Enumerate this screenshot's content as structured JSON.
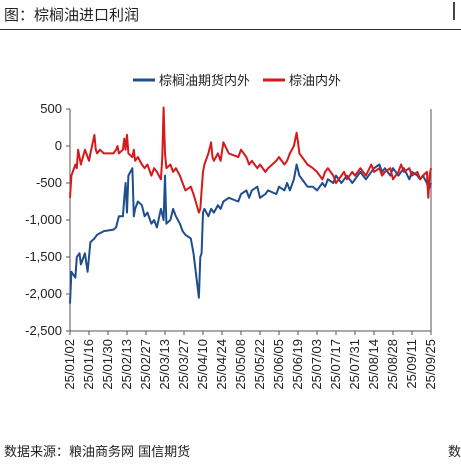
{
  "header": {
    "title": "图：棕榈油进口利润"
  },
  "footer": {
    "source": "数据来源：粮油商务网 国信期货",
    "edge_mark": "数"
  },
  "chart_data": {
    "type": "line",
    "legend_position": "top",
    "grid": false,
    "ylim": [
      -2500,
      500
    ],
    "yticks": [
      500,
      0,
      -500,
      -1000,
      -1500,
      -2000,
      -2500
    ],
    "ytick_labels": [
      "500",
      "0",
      "-500",
      "-1,000",
      "-1,500",
      "-2,000",
      "-2,500"
    ],
    "xlim": [
      "2025-01-02",
      "2025-09-25"
    ],
    "xtick_labels": [
      "25/01/02",
      "25/01/16",
      "25/01/30",
      "25/02/13",
      "25/02/27",
      "25/03/13",
      "25/03/27",
      "25/04/10",
      "25/04/24",
      "25/05/08",
      "25/05/22",
      "25/06/05",
      "25/06/19",
      "25/07/03",
      "25/07/17",
      "25/07/31",
      "25/08/14",
      "25/08/28",
      "25/09/11",
      "25/09/25"
    ],
    "xtick_dates": [
      "2025-01-02",
      "2025-01-16",
      "2025-01-30",
      "2025-02-13",
      "2025-02-27",
      "2025-03-13",
      "2025-03-27",
      "2025-04-10",
      "2025-04-24",
      "2025-05-08",
      "2025-05-22",
      "2025-06-05",
      "2025-06-19",
      "2025-07-03",
      "2025-07-17",
      "2025-07-31",
      "2025-08-14",
      "2025-08-28",
      "2025-09-11",
      "2025-09-25"
    ],
    "series": [
      {
        "name": "棕榈油期货内外",
        "color": "#1f4e8c",
        "points": [
          [
            "2025-01-02",
            -2130
          ],
          [
            "2025-01-03",
            -1700
          ],
          [
            "2025-01-06",
            -1780
          ],
          [
            "2025-01-07",
            -1500
          ],
          [
            "2025-01-09",
            -1450
          ],
          [
            "2025-01-10",
            -1600
          ],
          [
            "2025-01-13",
            -1450
          ],
          [
            "2025-01-15",
            -1700
          ],
          [
            "2025-01-17",
            -1300
          ],
          [
            "2025-01-20",
            -1250
          ],
          [
            "2025-01-22",
            -1200
          ],
          [
            "2025-01-24",
            -1180
          ],
          [
            "2025-01-27",
            -1150
          ],
          [
            "2025-02-03",
            -1130
          ],
          [
            "2025-02-05",
            -1100
          ],
          [
            "2025-02-07",
            -950
          ],
          [
            "2025-02-10",
            -950
          ],
          [
            "2025-02-11",
            -700
          ],
          [
            "2025-02-12",
            -500
          ],
          [
            "2025-02-13",
            -900
          ],
          [
            "2025-02-14",
            -400
          ],
          [
            "2025-02-17",
            -300
          ],
          [
            "2025-02-18",
            -950
          ],
          [
            "2025-02-19",
            -850
          ],
          [
            "2025-02-21",
            -750
          ],
          [
            "2025-02-24",
            -800
          ],
          [
            "2025-02-26",
            -950
          ],
          [
            "2025-02-28",
            -900
          ],
          [
            "2025-03-03",
            -1050
          ],
          [
            "2025-03-05",
            -1000
          ],
          [
            "2025-03-07",
            -1100
          ],
          [
            "2025-03-10",
            -850
          ],
          [
            "2025-03-12",
            -1000
          ],
          [
            "2025-03-13",
            -400
          ],
          [
            "2025-03-14",
            -1050
          ],
          [
            "2025-03-17",
            -1000
          ],
          [
            "2025-03-19",
            -850
          ],
          [
            "2025-03-21",
            -950
          ],
          [
            "2025-03-24",
            -1050
          ],
          [
            "2025-03-26",
            -1150
          ],
          [
            "2025-03-28",
            -1200
          ],
          [
            "2025-04-01",
            -1250
          ],
          [
            "2025-04-03",
            -1450
          ],
          [
            "2025-04-07",
            -2050
          ],
          [
            "2025-04-08",
            -1500
          ],
          [
            "2025-04-09",
            -1450
          ],
          [
            "2025-04-10",
            -900
          ],
          [
            "2025-04-11",
            -850
          ],
          [
            "2025-04-14",
            -950
          ],
          [
            "2025-04-16",
            -850
          ],
          [
            "2025-04-18",
            -900
          ],
          [
            "2025-04-21",
            -800
          ],
          [
            "2025-04-23",
            -850
          ],
          [
            "2025-04-25",
            -750
          ],
          [
            "2025-04-29",
            -700
          ],
          [
            "2025-05-06",
            -750
          ],
          [
            "2025-05-08",
            -650
          ],
          [
            "2025-05-12",
            -600
          ],
          [
            "2025-05-14",
            -700
          ],
          [
            "2025-05-16",
            -600
          ],
          [
            "2025-05-20",
            -550
          ],
          [
            "2025-05-22",
            -700
          ],
          [
            "2025-05-26",
            -650
          ],
          [
            "2025-05-28",
            -600
          ],
          [
            "2025-06-03",
            -650
          ],
          [
            "2025-06-05",
            -550
          ],
          [
            "2025-06-09",
            -600
          ],
          [
            "2025-06-11",
            -500
          ],
          [
            "2025-06-13",
            -600
          ],
          [
            "2025-06-16",
            -450
          ],
          [
            "2025-06-18",
            -250
          ],
          [
            "2025-06-20",
            -400
          ],
          [
            "2025-06-24",
            -500
          ],
          [
            "2025-06-26",
            -550
          ],
          [
            "2025-06-30",
            -550
          ],
          [
            "2025-07-03",
            -600
          ],
          [
            "2025-07-07",
            -500
          ],
          [
            "2025-07-09",
            -550
          ],
          [
            "2025-07-11",
            -450
          ],
          [
            "2025-07-15",
            -500
          ],
          [
            "2025-07-17",
            -400
          ],
          [
            "2025-07-21",
            -500
          ],
          [
            "2025-07-23",
            -450
          ],
          [
            "2025-07-25",
            -400
          ],
          [
            "2025-07-29",
            -500
          ],
          [
            "2025-07-31",
            -450
          ],
          [
            "2025-08-04",
            -350
          ],
          [
            "2025-08-06",
            -400
          ],
          [
            "2025-08-08",
            -450
          ],
          [
            "2025-08-12",
            -350
          ],
          [
            "2025-08-14",
            -300
          ],
          [
            "2025-08-18",
            -250
          ],
          [
            "2025-08-20",
            -350
          ],
          [
            "2025-08-22",
            -300
          ],
          [
            "2025-08-26",
            -400
          ],
          [
            "2025-08-28",
            -300
          ],
          [
            "2025-09-01",
            -400
          ],
          [
            "2025-09-03",
            -350
          ],
          [
            "2025-09-05",
            -300
          ],
          [
            "2025-09-09",
            -450
          ],
          [
            "2025-09-11",
            -350
          ],
          [
            "2025-09-15",
            -400
          ],
          [
            "2025-09-17",
            -450
          ],
          [
            "2025-09-19",
            -400
          ],
          [
            "2025-09-22",
            -500
          ],
          [
            "2025-09-23",
            -600
          ],
          [
            "2025-09-24",
            -550
          ],
          [
            "2025-09-25",
            -500
          ]
        ]
      },
      {
        "name": "棕油内外",
        "color": "#d7191c",
        "points": [
          [
            "2025-01-02",
            -700
          ],
          [
            "2025-01-03",
            -400
          ],
          [
            "2025-01-06",
            -250
          ],
          [
            "2025-01-07",
            -300
          ],
          [
            "2025-01-08",
            -50
          ],
          [
            "2025-01-09",
            -150
          ],
          [
            "2025-01-10",
            -250
          ],
          [
            "2025-01-13",
            -50
          ],
          [
            "2025-01-14",
            -100
          ],
          [
            "2025-01-16",
            -200
          ],
          [
            "2025-01-17",
            -100
          ],
          [
            "2025-01-20",
            150
          ],
          [
            "2025-01-21",
            -50
          ],
          [
            "2025-01-22",
            -100
          ],
          [
            "2025-01-24",
            -50
          ],
          [
            "2025-01-27",
            -100
          ],
          [
            "2025-02-03",
            -100
          ],
          [
            "2025-02-05",
            -50
          ],
          [
            "2025-02-06",
            0
          ],
          [
            "2025-02-07",
            -100
          ],
          [
            "2025-02-10",
            -50
          ],
          [
            "2025-02-11",
            100
          ],
          [
            "2025-02-12",
            -50
          ],
          [
            "2025-02-13",
            150
          ],
          [
            "2025-02-14",
            -100
          ],
          [
            "2025-02-17",
            -150
          ],
          [
            "2025-02-18",
            -50
          ],
          [
            "2025-02-19",
            -200
          ],
          [
            "2025-02-21",
            -150
          ],
          [
            "2025-02-24",
            -250
          ],
          [
            "2025-02-26",
            -300
          ],
          [
            "2025-02-28",
            -250
          ],
          [
            "2025-03-03",
            -400
          ],
          [
            "2025-03-05",
            -300
          ],
          [
            "2025-03-07",
            -350
          ],
          [
            "2025-03-10",
            -450
          ],
          [
            "2025-03-11",
            -150
          ],
          [
            "2025-03-12",
            520
          ],
          [
            "2025-03-13",
            -100
          ],
          [
            "2025-03-14",
            -300
          ],
          [
            "2025-03-17",
            -250
          ],
          [
            "2025-03-19",
            -350
          ],
          [
            "2025-03-21",
            -300
          ],
          [
            "2025-03-24",
            -400
          ],
          [
            "2025-03-26",
            -500
          ],
          [
            "2025-03-28",
            -600
          ],
          [
            "2025-04-01",
            -550
          ],
          [
            "2025-04-03",
            -650
          ],
          [
            "2025-04-07",
            -900
          ],
          [
            "2025-04-08",
            -850
          ],
          [
            "2025-04-09",
            -600
          ],
          [
            "2025-04-10",
            -350
          ],
          [
            "2025-04-11",
            -250
          ],
          [
            "2025-04-14",
            -100
          ],
          [
            "2025-04-16",
            50
          ],
          [
            "2025-04-17",
            -150
          ],
          [
            "2025-04-18",
            -200
          ],
          [
            "2025-04-21",
            -100
          ],
          [
            "2025-04-23",
            -200
          ],
          [
            "2025-04-25",
            50
          ],
          [
            "2025-04-29",
            -100
          ],
          [
            "2025-05-06",
            -150
          ],
          [
            "2025-05-08",
            -50
          ],
          [
            "2025-05-12",
            -150
          ],
          [
            "2025-05-14",
            -250
          ],
          [
            "2025-05-16",
            -200
          ],
          [
            "2025-05-20",
            -300
          ],
          [
            "2025-05-22",
            -250
          ],
          [
            "2025-05-26",
            -350
          ],
          [
            "2025-05-28",
            -300
          ],
          [
            "2025-06-03",
            -200
          ],
          [
            "2025-06-05",
            -150
          ],
          [
            "2025-06-09",
            -250
          ],
          [
            "2025-06-11",
            -200
          ],
          [
            "2025-06-13",
            -100
          ],
          [
            "2025-06-16",
            0
          ],
          [
            "2025-06-18",
            180
          ],
          [
            "2025-06-19",
            50
          ],
          [
            "2025-06-20",
            -100
          ],
          [
            "2025-06-24",
            -200
          ],
          [
            "2025-06-26",
            -250
          ],
          [
            "2025-06-30",
            -300
          ],
          [
            "2025-07-03",
            -350
          ],
          [
            "2025-07-07",
            -450
          ],
          [
            "2025-07-09",
            -350
          ],
          [
            "2025-07-11",
            -300
          ],
          [
            "2025-07-15",
            -400
          ],
          [
            "2025-07-17",
            -500
          ],
          [
            "2025-07-21",
            -400
          ],
          [
            "2025-07-23",
            -350
          ],
          [
            "2025-07-25",
            -450
          ],
          [
            "2025-07-29",
            -350
          ],
          [
            "2025-07-31",
            -400
          ],
          [
            "2025-08-04",
            -300
          ],
          [
            "2025-08-06",
            -350
          ],
          [
            "2025-08-08",
            -400
          ],
          [
            "2025-08-12",
            -250
          ],
          [
            "2025-08-14",
            -350
          ],
          [
            "2025-08-18",
            -300
          ],
          [
            "2025-08-20",
            -400
          ],
          [
            "2025-08-22",
            -350
          ],
          [
            "2025-08-26",
            -300
          ],
          [
            "2025-08-28",
            -450
          ],
          [
            "2025-09-01",
            -350
          ],
          [
            "2025-09-03",
            -250
          ],
          [
            "2025-09-05",
            -350
          ],
          [
            "2025-09-09",
            -300
          ],
          [
            "2025-09-11",
            -400
          ],
          [
            "2025-09-15",
            -350
          ],
          [
            "2025-09-17",
            -450
          ],
          [
            "2025-09-19",
            -400
          ],
          [
            "2025-09-22",
            -350
          ],
          [
            "2025-09-23",
            -700
          ],
          [
            "2025-09-24",
            -400
          ],
          [
            "2025-09-25",
            -300
          ]
        ]
      }
    ]
  }
}
